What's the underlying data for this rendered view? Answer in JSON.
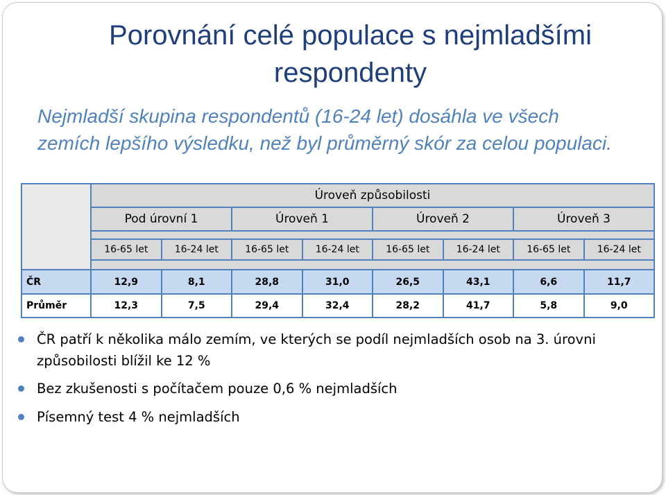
{
  "title": "Porovnání celé populace s nejmladšími respondenty",
  "subtitle": "Nejmladší skupina respondentů (16-24 let) dosáhla ve všech zemích lepšího výsledku, než byl průměrný skór za celou populaci.",
  "table": {
    "top_header": "Úroveň způsobilosti",
    "levels": [
      "Pod úrovní 1",
      "Úroveň 1",
      "Úroveň 2",
      "Úroveň 3"
    ],
    "ages": [
      "16-65 let",
      "16-24 let",
      "16-65 let",
      "16-24 let",
      "16-65 let",
      "16-24 let",
      "16-65 let",
      "16-24 let"
    ],
    "rows": [
      {
        "label": "ČR",
        "values": [
          "12,9",
          "8,1",
          "28,8",
          "31,0",
          "26,5",
          "43,1",
          "6,6",
          "11,7"
        ]
      },
      {
        "label": "Průměr",
        "values": [
          "12,3",
          "7,5",
          "29,4",
          "32,4",
          "28,2",
          "41,7",
          "5,8",
          "9,0"
        ]
      }
    ]
  },
  "bullets": [
    "ČR patří k několika málo zemím, ve kterých se podíl nejmladších osob na 3. úrovni způsobilosti blížil ke 12 %",
    "Bez zkušenosti s počítačem pouze 0,6 % nejmladších",
    "Písemný test 4 % nejmladších"
  ],
  "colors": {
    "title": "#1f3f7a",
    "subtitle": "#4f81bd",
    "table_border": "#4f81bd",
    "header_bg": "#d9d9d9",
    "row_highlight": "#c6d9f1"
  }
}
